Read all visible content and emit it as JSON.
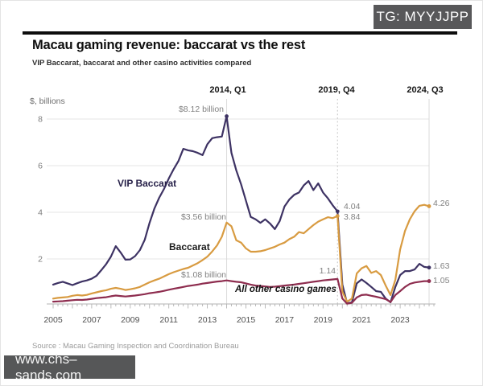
{
  "overlay": {
    "tg_badge": "TG: MYYJJPP",
    "site_badge": "www.chs–sands.com"
  },
  "header": {
    "title": "Macau gaming revenue: baccarat vs the rest",
    "subtitle": "VIP Baccarat, baccarat and other casino activities compared"
  },
  "source": "Source : Macau Gaming Inspection and Coordination Bureau",
  "chart_data": {
    "type": "line",
    "unit_label": "$, billions",
    "t_start": 2005.0,
    "t_step": 0.25,
    "t_end": 2024.5,
    "x_tick_years": [
      2005,
      2007,
      2009,
      2011,
      2013,
      2015,
      2017,
      2019,
      2021,
      2023
    ],
    "y_ticks": [
      2,
      4,
      6,
      8
    ],
    "ylim": [
      0,
      8.6
    ],
    "grid": "horizontal",
    "series": [
      {
        "name": "VIP Baccarat",
        "color": "#3d3263",
        "values": [
          0.9,
          0.97,
          1.02,
          0.95,
          0.88,
          0.96,
          1.03,
          1.08,
          1.15,
          1.28,
          1.52,
          1.78,
          2.1,
          2.55,
          2.28,
          1.97,
          1.98,
          2.12,
          2.38,
          2.82,
          3.55,
          4.15,
          4.62,
          5.0,
          5.45,
          5.85,
          6.2,
          6.72,
          6.66,
          6.62,
          6.55,
          6.45,
          6.92,
          7.18,
          7.22,
          7.25,
          8.12,
          6.55,
          5.8,
          5.2,
          4.5,
          3.8,
          3.7,
          3.55,
          3.7,
          3.52,
          3.28,
          3.62,
          4.25,
          4.55,
          4.75,
          4.85,
          5.15,
          5.34,
          4.95,
          5.24,
          4.85,
          4.6,
          4.3,
          4.04,
          0.9,
          0.1,
          0.14,
          0.95,
          1.12,
          0.97,
          0.8,
          0.62,
          0.59,
          0.3,
          0.14,
          0.8,
          1.31,
          1.48,
          1.48,
          1.55,
          1.79,
          1.66,
          1.63
        ]
      },
      {
        "name": "Baccarat",
        "color": "#d89b41",
        "values": [
          0.3,
          0.33,
          0.35,
          0.37,
          0.42,
          0.45,
          0.43,
          0.46,
          0.52,
          0.57,
          0.62,
          0.66,
          0.72,
          0.76,
          0.72,
          0.67,
          0.7,
          0.74,
          0.8,
          0.9,
          1.0,
          1.08,
          1.15,
          1.25,
          1.35,
          1.43,
          1.5,
          1.57,
          1.62,
          1.72,
          1.82,
          1.95,
          2.1,
          2.32,
          2.58,
          2.95,
          3.56,
          3.4,
          2.8,
          2.7,
          2.45,
          2.31,
          2.31,
          2.33,
          2.38,
          2.45,
          2.52,
          2.62,
          2.7,
          2.85,
          2.95,
          3.15,
          3.1,
          3.28,
          3.45,
          3.6,
          3.7,
          3.79,
          3.75,
          3.84,
          0.6,
          0.17,
          0.3,
          1.38,
          1.6,
          1.7,
          1.4,
          1.48,
          1.31,
          0.86,
          0.45,
          1.1,
          2.41,
          3.2,
          3.7,
          4.05,
          4.28,
          4.32,
          4.26
        ]
      },
      {
        "name": "All other casino games",
        "color": "#8e2d4f",
        "values": [
          0.17,
          0.18,
          0.19,
          0.21,
          0.23,
          0.25,
          0.24,
          0.26,
          0.29,
          0.32,
          0.34,
          0.36,
          0.4,
          0.43,
          0.41,
          0.39,
          0.41,
          0.43,
          0.46,
          0.49,
          0.53,
          0.56,
          0.59,
          0.63,
          0.68,
          0.72,
          0.76,
          0.8,
          0.84,
          0.87,
          0.9,
          0.94,
          0.97,
          1.0,
          1.03,
          1.05,
          1.08,
          1.05,
          1.02,
          1.0,
          0.95,
          0.9,
          0.86,
          0.84,
          0.82,
          0.8,
          0.81,
          0.83,
          0.86,
          0.88,
          0.9,
          0.93,
          0.96,
          0.99,
          1.02,
          1.05,
          1.08,
          1.1,
          1.12,
          1.14,
          0.3,
          0.08,
          0.12,
          0.35,
          0.45,
          0.47,
          0.42,
          0.38,
          0.33,
          0.28,
          0.15,
          0.45,
          0.62,
          0.8,
          0.93,
          0.99,
          1.02,
          1.05,
          1.05
        ]
      }
    ],
    "ref_lines": [
      {
        "t": 2014.0,
        "label": "2014, Q1",
        "style": "solid"
      },
      {
        "t": 2019.75,
        "label": "2019, Q4",
        "style": "dotted"
      },
      {
        "t": 2024.5,
        "label": "2024, Q3",
        "style": "solid"
      }
    ],
    "markers": [
      {
        "t": 2014.0,
        "v": 8.12,
        "series": 0
      },
      {
        "t": 2019.75,
        "v": 4.04,
        "series": 0
      },
      {
        "t": 2019.75,
        "v": 3.84,
        "series": 1
      },
      {
        "t": 2024.5,
        "v": 4.26,
        "series": 1
      },
      {
        "t": 2024.5,
        "v": 1.63,
        "series": 0
      },
      {
        "t": 2024.5,
        "v": 1.05,
        "series": 2
      }
    ],
    "annotations": {
      "vip_peak": "$8.12 billion",
      "bacc_peak": "$3.56 billion",
      "other_peak": "$1.08 billion",
      "vip_2019q4": "4.04",
      "bacc_2019q4": "3.84",
      "other_2019q4": "1.14",
      "bacc_end": "4.26",
      "vip_end": "1.63",
      "other_end": "1.05"
    }
  }
}
